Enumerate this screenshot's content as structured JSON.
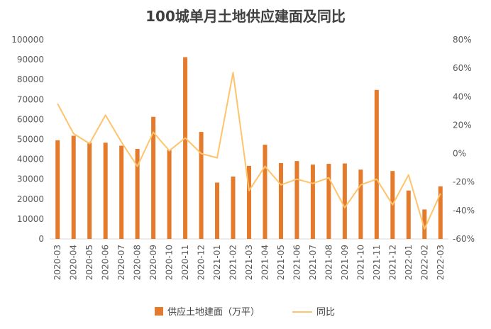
{
  "chart_data": {
    "type": "bar+line",
    "title": "100城单月土地供应建面及同比",
    "categories": [
      "2020-03",
      "2020-04",
      "2020-05",
      "2020-06",
      "2020-07",
      "2020-08",
      "2020-09",
      "2020-10",
      "2020-11",
      "2020-12",
      "2021-01",
      "2021-02",
      "2021-03",
      "2021-04",
      "2021-05",
      "2021-06",
      "2021-07",
      "2021-08",
      "2021-09",
      "2021-10",
      "2021-11",
      "2021-12",
      "2022-01",
      "2022-02",
      "2022-03"
    ],
    "series": [
      {
        "name": "供应土地建面（万平）",
        "type": "bar",
        "axis": "left",
        "color": "#E47A2C",
        "values": [
          49500,
          51800,
          48300,
          48300,
          46800,
          45200,
          61300,
          44700,
          91200,
          53700,
          28300,
          31300,
          36700,
          47300,
          38100,
          39100,
          37300,
          37700,
          37900,
          34800,
          74800,
          34100,
          24300,
          14800,
          26400
        ]
      },
      {
        "name": "同比",
        "type": "line",
        "axis": "right",
        "color": "#FFC46B",
        "values": [
          35,
          14,
          7,
          27,
          8,
          -9,
          15,
          2,
          11,
          0,
          -3,
          57,
          -26,
          -9,
          -22,
          -18,
          -21,
          -17,
          -38,
          -22,
          -18,
          -36,
          -15,
          -53,
          -28
        ]
      }
    ],
    "y_left": {
      "min": 0,
      "max": 100000,
      "step": 10000,
      "ticks": [
        "0",
        "10000",
        "20000",
        "30000",
        "40000",
        "50000",
        "60000",
        "70000",
        "80000",
        "90000",
        "100000"
      ]
    },
    "y_right": {
      "min": -60,
      "max": 80,
      "step": 20,
      "ticks": [
        "-60%",
        "-40%",
        "-20%",
        "0%",
        "20%",
        "40%",
        "60%",
        "80%"
      ]
    },
    "legend_position": "bottom",
    "grid": false
  }
}
